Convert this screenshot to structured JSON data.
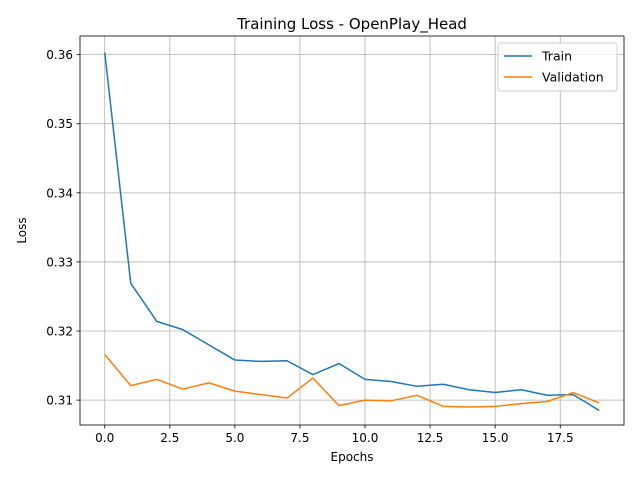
{
  "chart_data": {
    "type": "line",
    "title": "Training Loss - OpenPlay_Head",
    "xlabel": "Epochs",
    "ylabel": "Loss",
    "xlim": [
      -0.95,
      19.95
    ],
    "ylim": [
      0.3064,
      0.3627
    ],
    "xticks": [
      0.0,
      2.5,
      5.0,
      7.5,
      10.0,
      12.5,
      15.0,
      17.5
    ],
    "xtick_labels": [
      "0.0",
      "2.5",
      "5.0",
      "7.5",
      "10.0",
      "12.5",
      "15.0",
      "17.5"
    ],
    "yticks": [
      0.31,
      0.32,
      0.33,
      0.34,
      0.35,
      0.36
    ],
    "ytick_labels": [
      "0.31",
      "0.32",
      "0.33",
      "0.34",
      "0.35",
      "0.36"
    ],
    "grid": true,
    "legend_position": "top-right",
    "x": [
      0,
      1,
      2,
      3,
      4,
      5,
      6,
      7,
      8,
      9,
      10,
      11,
      12,
      13,
      14,
      15,
      16,
      17,
      18,
      19
    ],
    "series": [
      {
        "name": "Train",
        "color": "#1f77b4",
        "values": [
          0.3603,
          0.3269,
          0.3214,
          0.3202,
          0.318,
          0.3158,
          0.3156,
          0.3157,
          0.3137,
          0.3153,
          0.313,
          0.3127,
          0.312,
          0.3123,
          0.3115,
          0.3111,
          0.3115,
          0.3107,
          0.3108,
          0.3085
        ]
      },
      {
        "name": "Validation",
        "color": "#ff7f0e",
        "values": [
          0.3166,
          0.3121,
          0.313,
          0.3116,
          0.3125,
          0.3113,
          0.3108,
          0.3103,
          0.3132,
          0.3092,
          0.31,
          0.3099,
          0.3107,
          0.3091,
          0.309,
          0.3091,
          0.3095,
          0.3098,
          0.3111,
          0.3096
        ]
      }
    ]
  }
}
